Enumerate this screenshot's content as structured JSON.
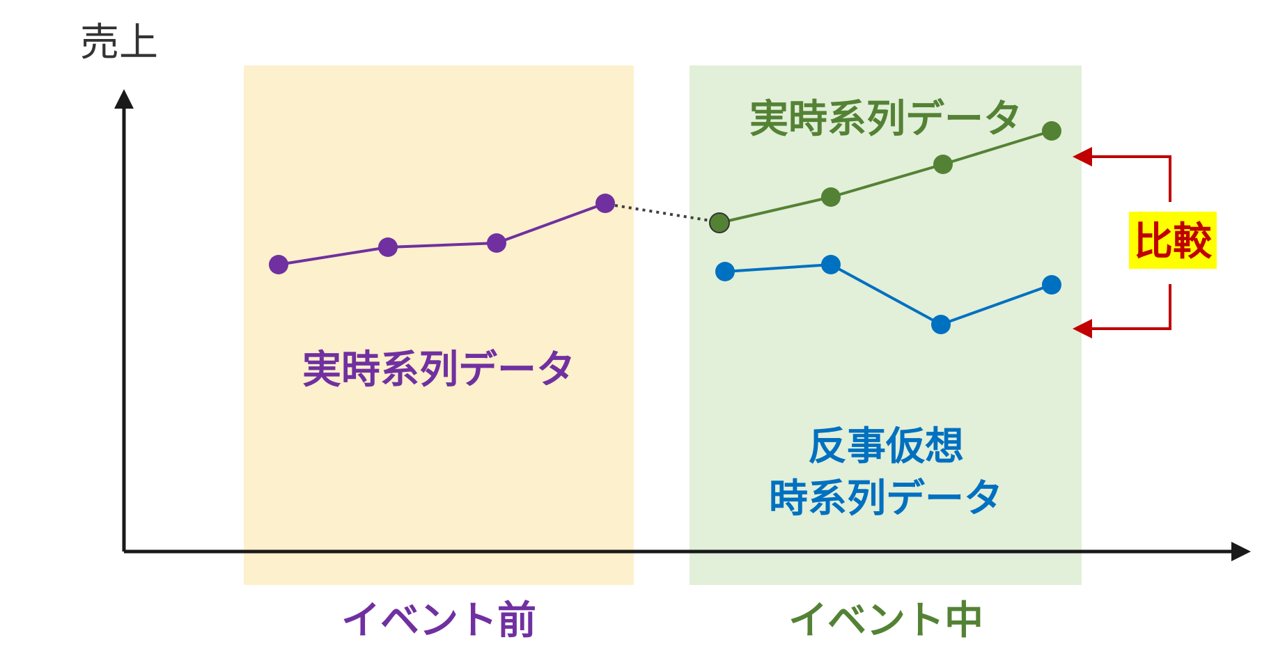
{
  "axis": {
    "y_label": "売上"
  },
  "regions": {
    "before": {
      "label": "イベント前",
      "fill": "#fdf0cc"
    },
    "during": {
      "label": "イベント中",
      "fill": "#e2efd9"
    }
  },
  "series": {
    "actual_before": {
      "label": "実時系列データ",
      "color": "#7030a0",
      "values": [
        380,
        355,
        349,
        292
      ]
    },
    "actual_during": {
      "label": "実時系列データ",
      "color": "#548235",
      "values": [
        320,
        283,
        236,
        188
      ]
    },
    "counterfactual": {
      "label_line1": "反事仮想",
      "label_line2": "時系列データ",
      "color": "#0070c0",
      "values": [
        390,
        380,
        466,
        409
      ]
    }
  },
  "comparison": {
    "label": "比較",
    "label_color": "#c00000",
    "highlight": "#ffff00",
    "arrow_color": "#c00000"
  },
  "colors": {
    "axis": "#1a1a1a",
    "connector": "#404040"
  }
}
